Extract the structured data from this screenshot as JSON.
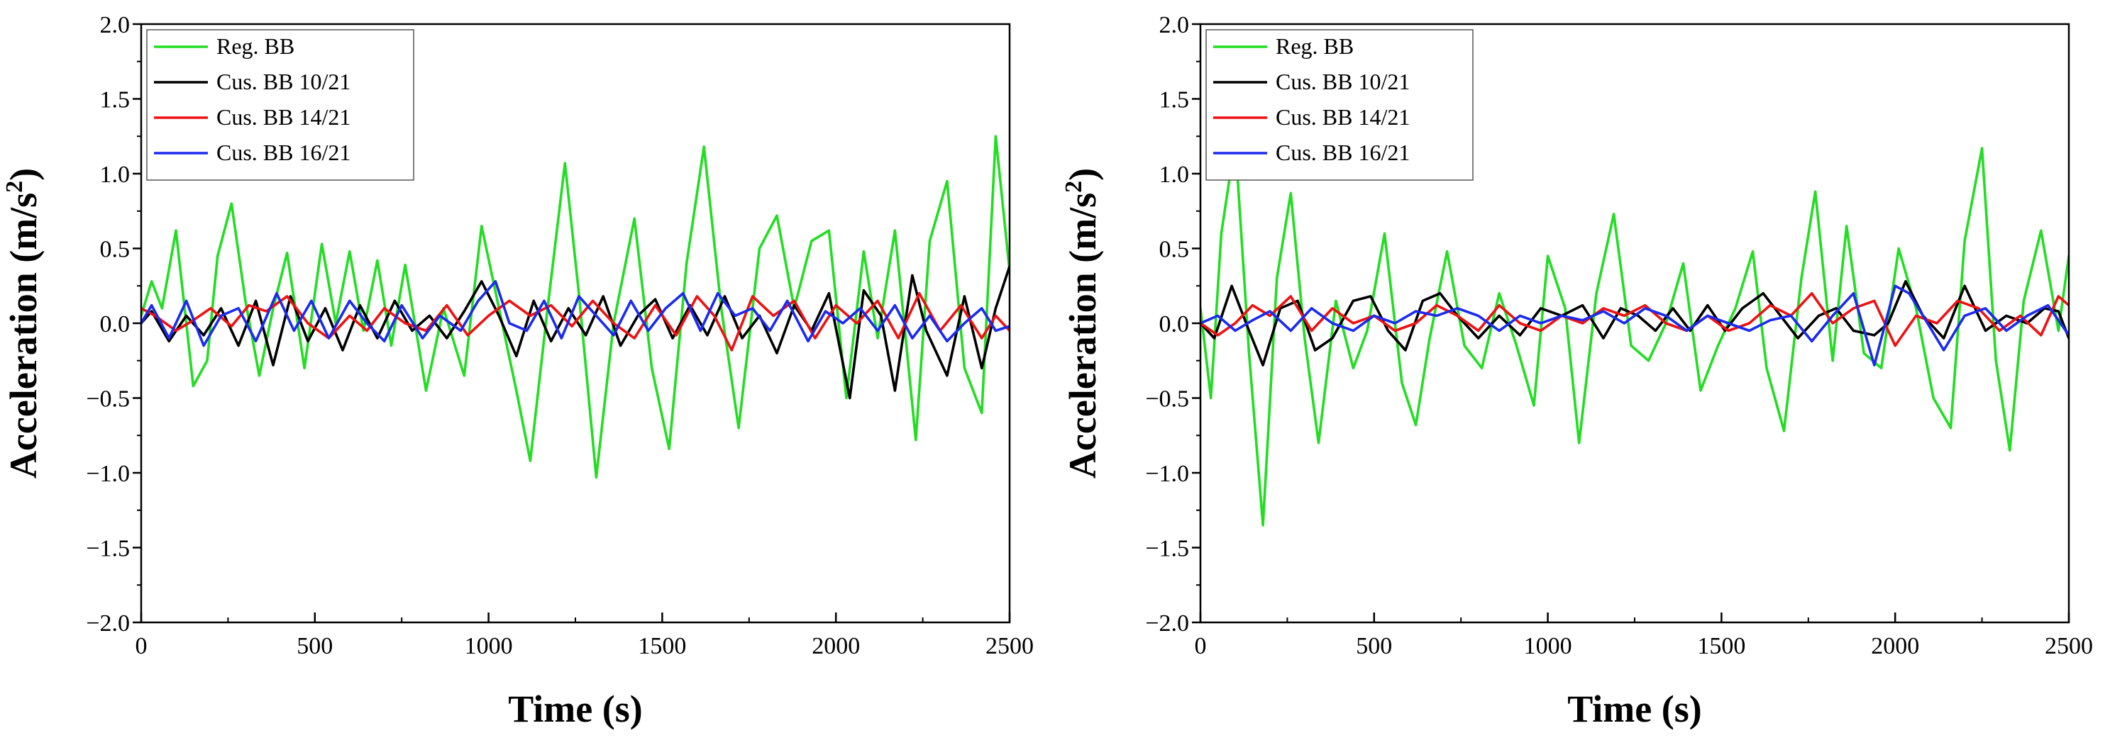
{
  "chart_data": [
    {
      "type": "line",
      "xlabel": "Time (s)",
      "ylabel_main": "Acceleration (m/s",
      "ylabel_sup": "2",
      "ylabel_end": ")",
      "xlim": [
        0,
        2500
      ],
      "ylim": [
        -2.0,
        2.0
      ],
      "x_ticks": [
        0,
        500,
        1000,
        1500,
        2000,
        2500
      ],
      "x_tick_labels": [
        "0",
        "500",
        "1000",
        "1500",
        "2000",
        "2500"
      ],
      "y_ticks": [
        -2.0,
        -1.5,
        -1.0,
        -0.5,
        0.0,
        0.5,
        1.0,
        1.5,
        2.0
      ],
      "y_tick_labels": [
        "−2.0",
        "−1.5",
        "−1.0",
        "−0.5",
        "0.0",
        "0.5",
        "1.0",
        "1.5",
        "2.0"
      ],
      "legend_position": "top-left",
      "series": [
        {
          "name": "Reg. BB",
          "color": "#22dd22",
          "x": [
            0,
            30,
            60,
            100,
            150,
            190,
            220,
            260,
            300,
            340,
            380,
            420,
            470,
            520,
            560,
            600,
            640,
            680,
            720,
            760,
            820,
            870,
            930,
            980,
            1030,
            1080,
            1120,
            1170,
            1220,
            1260,
            1310,
            1360,
            1420,
            1470,
            1520,
            1570,
            1620,
            1670,
            1720,
            1780,
            1830,
            1880,
            1930,
            1980,
            2030,
            2080,
            2120,
            2170,
            2230,
            2270,
            2320,
            2370,
            2420,
            2460,
            2500
          ],
          "y": [
            0.05,
            0.28,
            0.1,
            0.62,
            -0.42,
            -0.25,
            0.45,
            0.8,
            0.15,
            -0.35,
            0.1,
            0.47,
            -0.3,
            0.53,
            0.0,
            0.48,
            -0.05,
            0.42,
            -0.15,
            0.39,
            -0.45,
            0.1,
            -0.35,
            0.65,
            0.1,
            -0.45,
            -0.92,
            0.1,
            1.07,
            0.2,
            -1.03,
            0.0,
            0.7,
            -0.3,
            -0.84,
            0.4,
            1.18,
            0.1,
            -0.7,
            0.5,
            0.72,
            0.1,
            0.55,
            0.62,
            -0.5,
            0.48,
            -0.1,
            0.62,
            -0.78,
            0.55,
            0.95,
            -0.3,
            -0.6,
            1.25,
            0.35
          ]
        },
        {
          "name": "Cus. BB 10/21",
          "color": "#000000",
          "x": [
            0,
            30,
            80,
            130,
            180,
            230,
            280,
            330,
            380,
            430,
            480,
            530,
            580,
            630,
            680,
            730,
            780,
            830,
            880,
            930,
            980,
            1030,
            1080,
            1130,
            1180,
            1230,
            1280,
            1330,
            1380,
            1430,
            1480,
            1530,
            1580,
            1630,
            1680,
            1730,
            1780,
            1830,
            1880,
            1930,
            1980,
            2040,
            2080,
            2130,
            2170,
            2220,
            2260,
            2320,
            2370,
            2420,
            2460,
            2500
          ],
          "y": [
            0.0,
            0.08,
            -0.12,
            0.05,
            -0.08,
            0.1,
            -0.15,
            0.15,
            -0.28,
            0.18,
            -0.12,
            0.1,
            -0.18,
            0.12,
            -0.1,
            0.15,
            -0.05,
            0.05,
            -0.1,
            0.08,
            0.28,
            0.05,
            -0.22,
            0.15,
            -0.12,
            0.1,
            -0.08,
            0.18,
            -0.15,
            0.05,
            0.16,
            -0.1,
            0.12,
            -0.08,
            0.18,
            -0.1,
            0.05,
            -0.2,
            0.12,
            -0.05,
            0.2,
            -0.5,
            0.22,
            0.05,
            -0.45,
            0.32,
            -0.05,
            -0.35,
            0.18,
            -0.3,
            0.1,
            0.38
          ]
        },
        {
          "name": "Cus. BB 14/21",
          "color": "#ee1111",
          "x": [
            0,
            40,
            100,
            150,
            200,
            260,
            310,
            360,
            420,
            480,
            540,
            600,
            650,
            700,
            760,
            820,
            880,
            940,
            1000,
            1060,
            1120,
            1180,
            1240,
            1300,
            1360,
            1420,
            1480,
            1540,
            1600,
            1650,
            1700,
            1760,
            1820,
            1880,
            1940,
            2000,
            2060,
            2120,
            2180,
            2240,
            2300,
            2360,
            2420,
            2460,
            2500
          ],
          "y": [
            0.1,
            0.05,
            -0.05,
            0.02,
            0.1,
            -0.02,
            0.12,
            0.08,
            0.18,
            0.0,
            -0.1,
            0.05,
            -0.05,
            0.1,
            0.0,
            -0.05,
            0.12,
            -0.08,
            0.05,
            0.15,
            0.05,
            0.12,
            -0.02,
            0.15,
            0.0,
            -0.1,
            0.12,
            -0.08,
            0.18,
            0.05,
            -0.18,
            0.18,
            0.05,
            0.15,
            -0.1,
            0.12,
            0.0,
            0.15,
            -0.1,
            0.2,
            -0.05,
            0.12,
            -0.1,
            0.05,
            -0.05
          ]
        },
        {
          "name": "Cus. BB 16/21",
          "color": "#1a2aee",
          "x": [
            0,
            30,
            80,
            130,
            180,
            230,
            280,
            330,
            390,
            440,
            490,
            540,
            600,
            650,
            700,
            750,
            810,
            860,
            920,
            970,
            1020,
            1060,
            1110,
            1160,
            1210,
            1260,
            1310,
            1360,
            1410,
            1460,
            1510,
            1560,
            1610,
            1660,
            1710,
            1760,
            1810,
            1860,
            1920,
            1970,
            2020,
            2070,
            2120,
            2170,
            2220,
            2270,
            2320,
            2370,
            2420,
            2460,
            2500
          ],
          "y": [
            0.0,
            0.12,
            -0.1,
            0.15,
            -0.15,
            0.05,
            0.1,
            -0.12,
            0.2,
            -0.05,
            0.15,
            -0.1,
            0.15,
            0.0,
            -0.12,
            0.12,
            -0.1,
            0.05,
            -0.05,
            0.15,
            0.28,
            0.0,
            -0.05,
            0.15,
            -0.1,
            0.18,
            0.05,
            -0.08,
            0.15,
            -0.05,
            0.1,
            0.2,
            -0.05,
            0.2,
            0.05,
            0.1,
            -0.05,
            0.15,
            -0.12,
            0.08,
            0.0,
            0.1,
            -0.05,
            0.12,
            -0.1,
            0.05,
            -0.12,
            0.0,
            0.1,
            -0.05,
            -0.02
          ]
        }
      ]
    },
    {
      "type": "line",
      "xlabel": "Time (s)",
      "ylabel_main": "Acceleration (m/s",
      "ylabel_sup": "2",
      "ylabel_end": ")",
      "xlim": [
        0,
        2500
      ],
      "ylim": [
        -2.0,
        2.0
      ],
      "x_ticks": [
        0,
        500,
        1000,
        1500,
        2000,
        2500
      ],
      "x_tick_labels": [
        "0",
        "500",
        "1000",
        "1500",
        "2000",
        "2500"
      ],
      "y_ticks": [
        -2.0,
        -1.5,
        -1.0,
        -0.5,
        0.0,
        0.5,
        1.0,
        1.5,
        2.0
      ],
      "y_tick_labels": [
        "−2.0",
        "−1.5",
        "−1.0",
        "−0.5",
        "0.0",
        "0.5",
        "1.0",
        "1.5",
        "2.0"
      ],
      "legend_position": "top-left",
      "series": [
        {
          "name": "Reg. BB",
          "color": "#22dd22",
          "x": [
            0,
            30,
            60,
            100,
            140,
            180,
            220,
            260,
            300,
            340,
            390,
            440,
            480,
            530,
            580,
            620,
            660,
            710,
            760,
            810,
            860,
            910,
            960,
            1000,
            1050,
            1090,
            1140,
            1190,
            1240,
            1290,
            1340,
            1390,
            1440,
            1490,
            1540,
            1590,
            1630,
            1680,
            1730,
            1770,
            1820,
            1860,
            1910,
            1960,
            2010,
            2060,
            2110,
            2160,
            2200,
            2250,
            2290,
            2330,
            2370,
            2420,
            2470,
            2500
          ],
          "y": [
            0.1,
            -0.5,
            0.6,
            1.22,
            -0.2,
            -1.35,
            0.3,
            0.87,
            -0.1,
            -0.8,
            0.15,
            -0.3,
            -0.05,
            0.6,
            -0.4,
            -0.68,
            -0.1,
            0.48,
            -0.15,
            -0.3,
            0.2,
            -0.15,
            -0.55,
            0.45,
            0.1,
            -0.8,
            0.2,
            0.73,
            -0.15,
            -0.25,
            0.0,
            0.4,
            -0.45,
            -0.15,
            0.1,
            0.48,
            -0.3,
            -0.72,
            0.3,
            0.88,
            -0.25,
            0.65,
            -0.2,
            -0.3,
            0.5,
            0.1,
            -0.5,
            -0.7,
            0.55,
            1.17,
            -0.25,
            -0.85,
            0.15,
            0.62,
            -0.05,
            0.45
          ]
        },
        {
          "name": "Cus. BB 10/21",
          "color": "#000000",
          "x": [
            0,
            40,
            90,
            140,
            180,
            230,
            280,
            330,
            380,
            440,
            490,
            540,
            590,
            640,
            690,
            740,
            800,
            860,
            920,
            980,
            1040,
            1100,
            1160,
            1210,
            1260,
            1310,
            1360,
            1410,
            1460,
            1510,
            1560,
            1620,
            1670,
            1720,
            1780,
            1830,
            1880,
            1940,
            1980,
            2030,
            2080,
            2140,
            2200,
            2260,
            2320,
            2380,
            2430,
            2470,
            2500
          ],
          "y": [
            0.0,
            -0.1,
            0.25,
            -0.05,
            -0.28,
            0.1,
            0.15,
            -0.18,
            -0.1,
            0.15,
            0.18,
            -0.05,
            -0.18,
            0.15,
            0.2,
            0.05,
            -0.1,
            0.05,
            -0.08,
            0.1,
            0.05,
            0.12,
            -0.1,
            0.1,
            0.05,
            -0.05,
            0.1,
            -0.05,
            0.12,
            -0.05,
            0.1,
            0.2,
            0.05,
            -0.1,
            0.05,
            0.1,
            -0.05,
            -0.08,
            0.0,
            0.28,
            0.05,
            -0.1,
            0.25,
            -0.05,
            0.05,
            0.0,
            0.1,
            0.08,
            -0.1
          ]
        },
        {
          "name": "Cus. BB 14/21",
          "color": "#ee1111",
          "x": [
            0,
            50,
            100,
            150,
            200,
            260,
            320,
            380,
            440,
            500,
            560,
            620,
            680,
            740,
            800,
            860,
            920,
            980,
            1040,
            1100,
            1160,
            1220,
            1280,
            1340,
            1400,
            1460,
            1520,
            1580,
            1640,
            1700,
            1760,
            1820,
            1880,
            1940,
            2000,
            2060,
            2120,
            2180,
            2240,
            2300,
            2360,
            2420,
            2470,
            2500
          ],
          "y": [
            0.0,
            -0.08,
            0.0,
            0.12,
            0.05,
            0.18,
            -0.05,
            0.1,
            0.0,
            0.05,
            -0.05,
            0.0,
            0.12,
            0.05,
            -0.05,
            0.12,
            0.0,
            -0.05,
            0.05,
            0.0,
            0.1,
            0.05,
            0.12,
            0.0,
            -0.05,
            0.05,
            -0.05,
            0.0,
            0.12,
            0.05,
            0.2,
            0.0,
            0.1,
            0.15,
            -0.15,
            0.05,
            0.0,
            0.15,
            0.1,
            -0.05,
            0.05,
            -0.08,
            0.18,
            0.12
          ]
        },
        {
          "name": "Cus. BB 16/21",
          "color": "#1a2aee",
          "x": [
            0,
            50,
            100,
            150,
            200,
            260,
            320,
            380,
            440,
            500,
            560,
            620,
            680,
            740,
            800,
            860,
            920,
            980,
            1040,
            1100,
            1160,
            1220,
            1280,
            1340,
            1400,
            1460,
            1520,
            1580,
            1640,
            1700,
            1760,
            1820,
            1880,
            1940,
            2000,
            2040,
            2080,
            2140,
            2200,
            2260,
            2320,
            2380,
            2440,
            2500
          ],
          "y": [
            0.0,
            0.05,
            -0.05,
            0.02,
            0.08,
            -0.05,
            0.1,
            0.0,
            -0.05,
            0.05,
            0.0,
            0.08,
            0.05,
            0.1,
            0.05,
            -0.05,
            0.05,
            0.0,
            0.05,
            0.02,
            0.08,
            0.0,
            0.1,
            0.05,
            -0.05,
            0.05,
            0.0,
            -0.05,
            0.02,
            0.05,
            -0.12,
            0.05,
            0.2,
            -0.28,
            0.25,
            0.2,
            0.05,
            -0.18,
            0.05,
            0.1,
            -0.05,
            0.05,
            0.12,
            -0.08
          ]
        }
      ]
    }
  ]
}
